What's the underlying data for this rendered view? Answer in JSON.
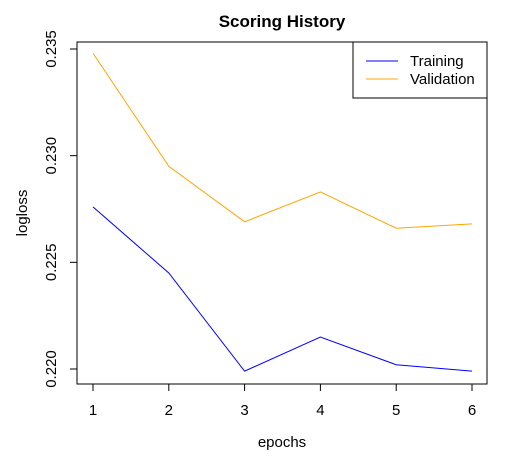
{
  "chart_data": {
    "type": "line",
    "title": "Scoring History",
    "xlabel": "epochs",
    "ylabel": "logloss",
    "x": [
      1,
      2,
      3,
      4,
      5,
      6
    ],
    "xlim": [
      1,
      6
    ],
    "ylim": [
      0.22,
      0.235
    ],
    "x_ticks": [
      "1",
      "2",
      "3",
      "4",
      "5",
      "6"
    ],
    "y_ticks": [
      "0.220",
      "0.225",
      "0.230",
      "0.235"
    ],
    "grid": false,
    "legend_position": "top-right",
    "series": [
      {
        "name": "Training",
        "color": "#0000ff",
        "values": [
          0.2276,
          0.2245,
          0.2199,
          0.2215,
          0.2202,
          0.2199
        ]
      },
      {
        "name": "Validation",
        "color": "#ffa500",
        "values": [
          0.2348,
          0.2295,
          0.2269,
          0.2283,
          0.2266,
          0.2268
        ]
      }
    ]
  }
}
